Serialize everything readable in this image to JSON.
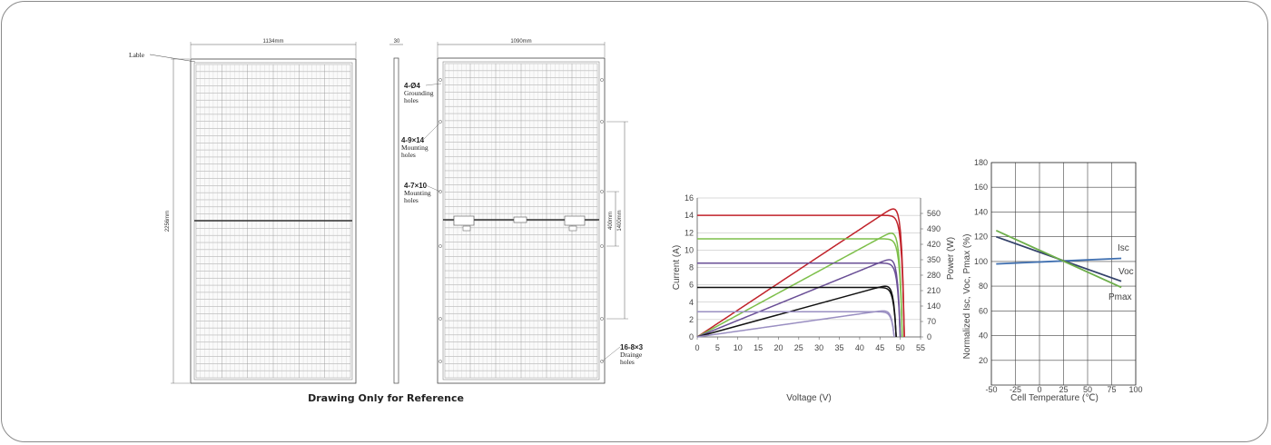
{
  "drawing": {
    "caption": "Drawing Only for Reference",
    "front": {
      "width_label": "1134mm",
      "height_label": "2256mm",
      "label_callout": "Lable"
    },
    "side": {
      "thickness_label": "30"
    },
    "back": {
      "width_label": "1090mm",
      "dim_1400": "1400mm",
      "dim_400": "400mm",
      "notes": [
        {
          "title": "4-Ø4",
          "lines": [
            "Grounding",
            "holes"
          ]
        },
        {
          "title": "4-9×14",
          "lines": [
            "Mounting",
            "holes"
          ]
        },
        {
          "title": "4-7×10",
          "lines": [
            "Mounting",
            "holes"
          ]
        },
        {
          "title": "16-8×3",
          "lines": [
            "Drainge",
            "holes"
          ]
        }
      ]
    }
  },
  "chart_data": [
    {
      "type": "line",
      "xlabel": "Voltage (V)",
      "ylabel": "Current (A)",
      "y2label": "Power (W)",
      "xlim": [
        0,
        55
      ],
      "ylim": [
        0,
        16
      ],
      "y2lim": [
        0,
        630
      ],
      "x_ticks": [
        0,
        5,
        10,
        15,
        20,
        25,
        30,
        35,
        40,
        45,
        50,
        55
      ],
      "y_ticks": [
        0,
        2,
        4,
        6,
        8,
        10,
        12,
        14,
        16
      ],
      "y2_ticks": [
        0,
        70,
        140,
        210,
        280,
        350,
        420,
        490,
        560
      ],
      "series": [
        {
          "color": "#c0222a",
          "isc": 14.0,
          "voc": 51.0,
          "vmp": 42.0,
          "pmax": 580
        },
        {
          "color": "#7dbf4a",
          "isc": 11.3,
          "voc": 50.5,
          "vmp": 42.0,
          "pmax": 470
        },
        {
          "color": "#6a4f96",
          "isc": 8.5,
          "voc": 50.0,
          "vmp": 42.0,
          "pmax": 350
        },
        {
          "color": "#111111",
          "isc": 5.7,
          "voc": 49.0,
          "vmp": 41.5,
          "pmax": 230
        },
        {
          "color": "#9a8fc2",
          "isc": 2.9,
          "voc": 48.5,
          "vmp": 41.0,
          "pmax": 118
        }
      ]
    },
    {
      "type": "line",
      "xlabel": "Cell Temperature (℃)",
      "ylabel": "Normalized Isc, Voc, Pmax (%)",
      "xlim": [
        -50,
        100
      ],
      "ylim": [
        0,
        180
      ],
      "x_ticks": [
        -50,
        -25,
        0,
        25,
        50,
        75,
        100
      ],
      "y_ticks": [
        20,
        40,
        60,
        80,
        100,
        120,
        140,
        160,
        180
      ],
      "series": [
        {
          "name": "Isc",
          "color": "#3f6fb0",
          "x": [
            -45,
            85
          ],
          "y": [
            98,
            102.5
          ]
        },
        {
          "name": "Voc",
          "color": "#34426a",
          "x": [
            -45,
            85
          ],
          "y": [
            120,
            84
          ]
        },
        {
          "name": "Pmax",
          "color": "#6dae4a",
          "x": [
            -45,
            85
          ],
          "y": [
            125,
            79
          ]
        }
      ]
    }
  ]
}
